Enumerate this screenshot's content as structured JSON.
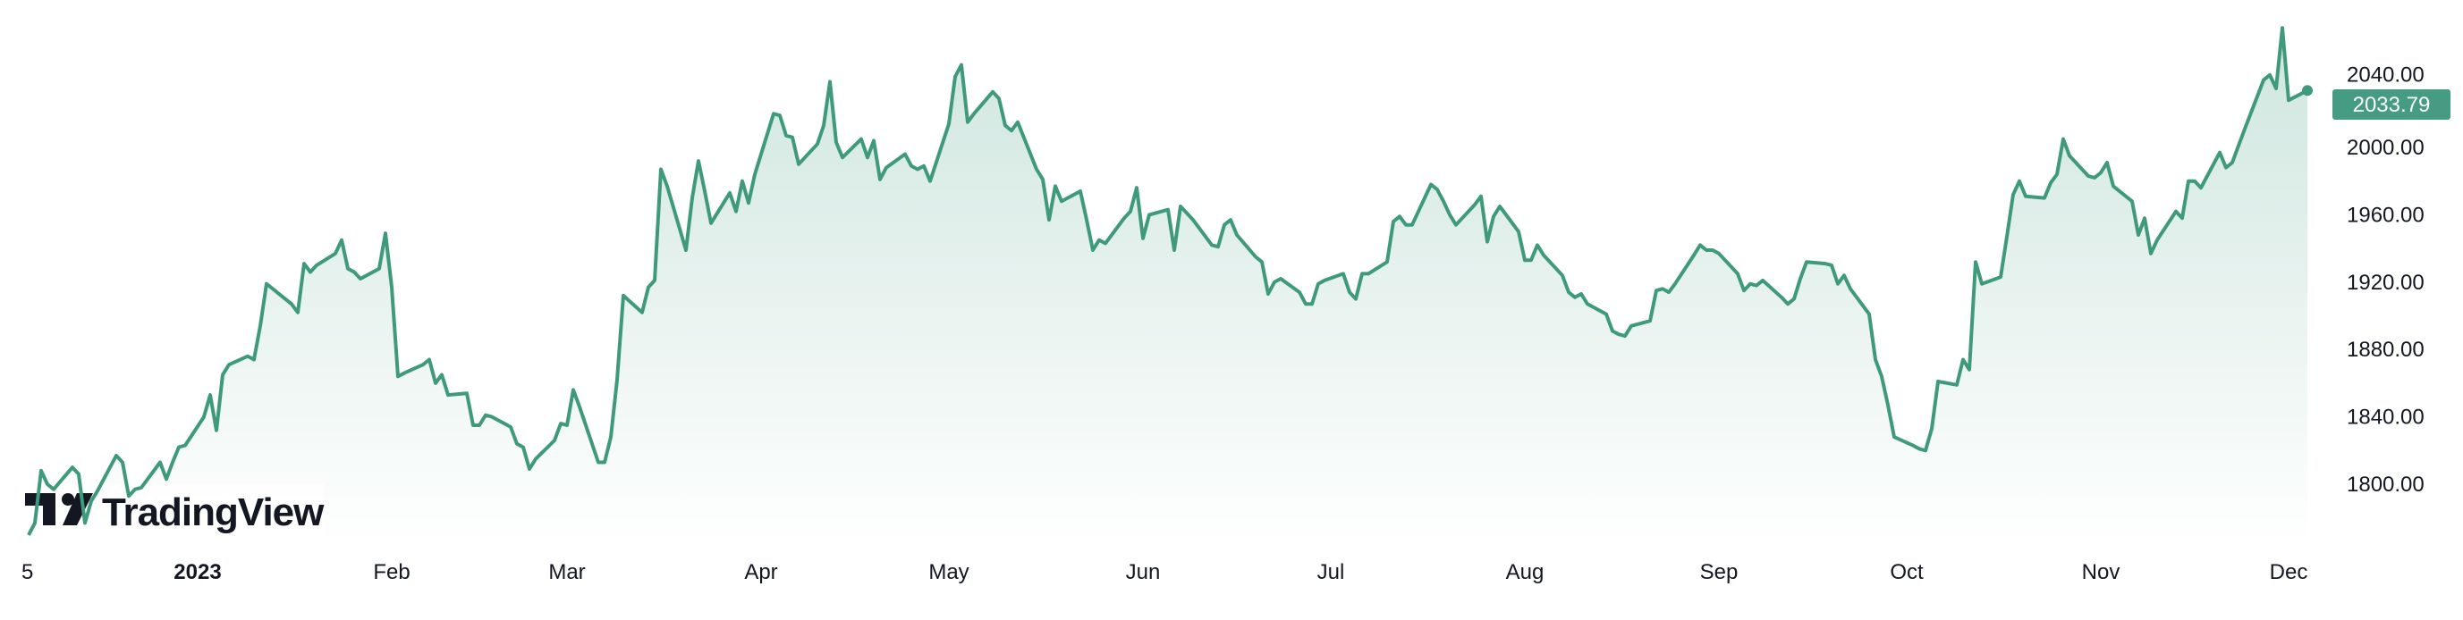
{
  "chart_data": {
    "type": "area",
    "title": "",
    "xlabel": "",
    "ylabel": "",
    "ylim": [
      1769,
      2087
    ],
    "grid": false,
    "legend": "none",
    "colors": {
      "line": "#3f9a7c",
      "fill_top": "#459c82",
      "price_label_bg": "#459c82",
      "text": "#131722"
    },
    "y_ticks": [
      "1800.00",
      "1840.00",
      "1880.00",
      "1920.00",
      "1960.00",
      "2000.00",
      "2040.00"
    ],
    "y_tick_values": [
      1800,
      1840,
      1880,
      1920,
      1960,
      2000,
      2040
    ],
    "x_ticks": [
      {
        "label": "5",
        "date": "2022-12-05",
        "bold": false
      },
      {
        "label": "2023",
        "date": "2023-01-01",
        "bold": true
      },
      {
        "label": "Feb",
        "date": "2023-02-01",
        "bold": false
      },
      {
        "label": "Mar",
        "date": "2023-03-01",
        "bold": false
      },
      {
        "label": "Apr",
        "date": "2023-04-01",
        "bold": false
      },
      {
        "label": "May",
        "date": "2023-05-01",
        "bold": false
      },
      {
        "label": "Jun",
        "date": "2023-06-01",
        "bold": false
      },
      {
        "label": "Jul",
        "date": "2023-07-01",
        "bold": false
      },
      {
        "label": "Aug",
        "date": "2023-08-01",
        "bold": false
      },
      {
        "label": "Sep",
        "date": "2023-09-01",
        "bold": false
      },
      {
        "label": "Oct",
        "date": "2023-10-01",
        "bold": false
      },
      {
        "label": "Nov",
        "date": "2023-11-01",
        "bold": false
      },
      {
        "label": "Dec",
        "date": "2023-12-01",
        "bold": false
      }
    ],
    "last_price": "2033.79",
    "dates": [
      "2022-12-05",
      "2022-12-06",
      "2022-12-07",
      "2022-12-08",
      "2022-12-09",
      "2022-12-12",
      "2022-12-13",
      "2022-12-14",
      "2022-12-15",
      "2022-12-16",
      "2022-12-19",
      "2022-12-20",
      "2022-12-21",
      "2022-12-22",
      "2022-12-23",
      "2022-12-26",
      "2022-12-27",
      "2022-12-28",
      "2022-12-29",
      "2022-12-30",
      "2023-01-02",
      "2023-01-03",
      "2023-01-04",
      "2023-01-05",
      "2023-01-06",
      "2023-01-09",
      "2023-01-10",
      "2023-01-11",
      "2023-01-12",
      "2023-01-13",
      "2023-01-16",
      "2023-01-17",
      "2023-01-18",
      "2023-01-19",
      "2023-01-20",
      "2023-01-23",
      "2023-01-24",
      "2023-01-25",
      "2023-01-26",
      "2023-01-27",
      "2023-01-30",
      "2023-01-31",
      "2023-02-01",
      "2023-02-02",
      "2023-02-03",
      "2023-02-06",
      "2023-02-07",
      "2023-02-08",
      "2023-02-09",
      "2023-02-10",
      "2023-02-13",
      "2023-02-14",
      "2023-02-15",
      "2023-02-16",
      "2023-02-17",
      "2023-02-20",
      "2023-02-21",
      "2023-02-22",
      "2023-02-23",
      "2023-02-24",
      "2023-02-27",
      "2023-02-28",
      "2023-03-01",
      "2023-03-02",
      "2023-03-03",
      "2023-03-06",
      "2023-03-07",
      "2023-03-08",
      "2023-03-09",
      "2023-03-10",
      "2023-03-13",
      "2023-03-14",
      "2023-03-15",
      "2023-03-16",
      "2023-03-17",
      "2023-03-20",
      "2023-03-21",
      "2023-03-22",
      "2023-03-23",
      "2023-03-24",
      "2023-03-27",
      "2023-03-28",
      "2023-03-29",
      "2023-03-30",
      "2023-03-31",
      "2023-04-03",
      "2023-04-04",
      "2023-04-05",
      "2023-04-06",
      "2023-04-07",
      "2023-04-10",
      "2023-04-11",
      "2023-04-12",
      "2023-04-13",
      "2023-04-14",
      "2023-04-17",
      "2023-04-18",
      "2023-04-19",
      "2023-04-20",
      "2023-04-21",
      "2023-04-24",
      "2023-04-25",
      "2023-04-26",
      "2023-04-27",
      "2023-04-28",
      "2023-05-01",
      "2023-05-02",
      "2023-05-03",
      "2023-05-04",
      "2023-05-05",
      "2023-05-08",
      "2023-05-09",
      "2023-05-10",
      "2023-05-11",
      "2023-05-12",
      "2023-05-15",
      "2023-05-16",
      "2023-05-17",
      "2023-05-18",
      "2023-05-19",
      "2023-05-22",
      "2023-05-23",
      "2023-05-24",
      "2023-05-25",
      "2023-05-26",
      "2023-05-29",
      "2023-05-30",
      "2023-05-31",
      "2023-06-01",
      "2023-06-02",
      "2023-06-05",
      "2023-06-06",
      "2023-06-07",
      "2023-06-08",
      "2023-06-09",
      "2023-06-12",
      "2023-06-13",
      "2023-06-14",
      "2023-06-15",
      "2023-06-16",
      "2023-06-19",
      "2023-06-20",
      "2023-06-21",
      "2023-06-22",
      "2023-06-23",
      "2023-06-26",
      "2023-06-27",
      "2023-06-28",
      "2023-06-29",
      "2023-06-30",
      "2023-07-03",
      "2023-07-04",
      "2023-07-05",
      "2023-07-06",
      "2023-07-07",
      "2023-07-10",
      "2023-07-11",
      "2023-07-12",
      "2023-07-13",
      "2023-07-14",
      "2023-07-17",
      "2023-07-18",
      "2023-07-19",
      "2023-07-20",
      "2023-07-21",
      "2023-07-24",
      "2023-07-25",
      "2023-07-26",
      "2023-07-27",
      "2023-07-28",
      "2023-07-31",
      "2023-08-01",
      "2023-08-02",
      "2023-08-03",
      "2023-08-04",
      "2023-08-07",
      "2023-08-08",
      "2023-08-09",
      "2023-08-10",
      "2023-08-11",
      "2023-08-14",
      "2023-08-15",
      "2023-08-16",
      "2023-08-17",
      "2023-08-18",
      "2023-08-21",
      "2023-08-22",
      "2023-08-23",
      "2023-08-24",
      "2023-08-25",
      "2023-08-28",
      "2023-08-29",
      "2023-08-30",
      "2023-08-31",
      "2023-09-01",
      "2023-09-04",
      "2023-09-05",
      "2023-09-06",
      "2023-09-07",
      "2023-09-08",
      "2023-09-11",
      "2023-09-12",
      "2023-09-13",
      "2023-09-14",
      "2023-09-15",
      "2023-09-18",
      "2023-09-19",
      "2023-09-20",
      "2023-09-21",
      "2023-09-22",
      "2023-09-25",
      "2023-09-26",
      "2023-09-27",
      "2023-09-28",
      "2023-09-29",
      "2023-10-02",
      "2023-10-03",
      "2023-10-04",
      "2023-10-05",
      "2023-10-06",
      "2023-10-09",
      "2023-10-10",
      "2023-10-11",
      "2023-10-12",
      "2023-10-13",
      "2023-10-16",
      "2023-10-17",
      "2023-10-18",
      "2023-10-19",
      "2023-10-20",
      "2023-10-23",
      "2023-10-24",
      "2023-10-25",
      "2023-10-26",
      "2023-10-27",
      "2023-10-30",
      "2023-10-31",
      "2023-11-01",
      "2023-11-02",
      "2023-11-03",
      "2023-11-06",
      "2023-11-07",
      "2023-11-08",
      "2023-11-09",
      "2023-11-10",
      "2023-11-13",
      "2023-11-14",
      "2023-11-15",
      "2023-11-16",
      "2023-11-17",
      "2023-11-20",
      "2023-11-21",
      "2023-11-22",
      "2023-11-23",
      "2023-11-24",
      "2023-11-27",
      "2023-11-28",
      "2023-11-29",
      "2023-11-30",
      "2023-12-01",
      "2023-12-04"
    ],
    "values": [
      1769.8,
      1777,
      1808,
      1800,
      1797,
      1810,
      1806,
      1777,
      1790,
      1796,
      1817,
      1813,
      1793,
      1797,
      1798,
      1813,
      1803,
      1813,
      1822,
      1823,
      1840,
      1853,
      1832,
      1865,
      1871,
      1876,
      1874,
      1894,
      1919,
      1916,
      1907,
      1902,
      1931,
      1926,
      1930,
      1937,
      1945,
      1928,
      1926,
      1922,
      1928,
      1949,
      1917,
      1864,
      1866,
      1871,
      1874,
      1860,
      1865,
      1853,
      1854,
      1835,
      1835,
      1841,
      1840,
      1834,
      1824,
      1822,
      1809,
      1815,
      1826,
      1836,
      1835,
      1856,
      1846,
      1813,
      1813,
      1828,
      1862,
      1912,
      1902,
      1917,
      1921,
      1987,
      1977,
      1939,
      1970,
      1992,
      1974,
      1955,
      1973,
      1962,
      1980,
      1967,
      1984,
      2020,
      2019,
      2007,
      2006,
      1990,
      2002,
      2013,
      2039,
      2003,
      1994,
      2005,
      1994,
      2004,
      1981,
      1988,
      1996,
      1989,
      1987,
      1989,
      1980,
      2014,
      2042,
      2049,
      2015,
      2020,
      2033,
      2029,
      2013,
      2010,
      2015,
      1987,
      1981,
      1957,
      1977,
      1968,
      1974,
      1957,
      1939,
      1945,
      1943,
      1958,
      1962,
      1976,
      1946,
      1960,
      1963,
      1939,
      1965,
      1961,
      1957,
      1942,
      1941,
      1954,
      1957,
      1948,
      1935,
      1932,
      1913,
      1920,
      1922,
      1914,
      1907,
      1907,
      1919,
      1921,
      1925,
      1914,
      1910,
      1925,
      1925,
      1932,
      1956,
      1959,
      1954,
      1954,
      1978,
      1975,
      1968,
      1960,
      1954,
      1966,
      1971,
      1944,
      1959,
      1965,
      1950,
      1933,
      1933,
      1942,
      1936,
      1924,
      1914,
      1911,
      1913,
      1907,
      1901,
      1891,
      1889,
      1888,
      1894,
      1897,
      1915,
      1916,
      1914,
      1919,
      1936,
      1942,
      1939,
      1939,
      1937,
      1925,
      1915,
      1919,
      1918,
      1921,
      1911,
      1907,
      1910,
      1922,
      1932,
      1931,
      1930,
      1919,
      1924,
      1916,
      1901,
      1874,
      1864,
      1847,
      1828,
      1823,
      1821,
      1820,
      1833,
      1861,
      1859,
      1874,
      1868,
      1932,
      1919,
      1923,
      1947,
      1972,
      1980,
      1971,
      1970,
      1979,
      1984,
      2005,
      1995,
      1983,
      1982,
      1985,
      1991,
      1977,
      1968,
      1948,
      1958,
      1937,
      1945,
      1962,
      1958,
      1980,
      1980,
      1976,
      1997,
      1988,
      1991,
      2001,
      2011,
      2040,
      2043,
      2035,
      2071,
      2028,
      2033.79
    ]
  },
  "watermark": {
    "text": "TradingView"
  }
}
